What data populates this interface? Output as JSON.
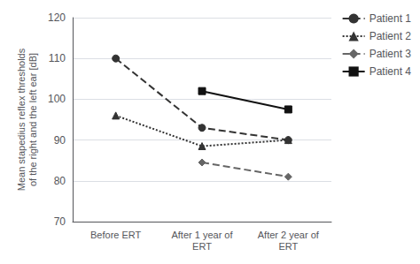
{
  "chart_data": {
    "type": "line",
    "categories": [
      "Before ERT",
      "After 1 year of\nERT",
      "After 2 year of\nERT"
    ],
    "series": [
      {
        "name": "Patient 1",
        "color": "#333333",
        "marker": "circle",
        "line_style": "dashed",
        "values": [
          110,
          93,
          90
        ]
      },
      {
        "name": "Patient 2",
        "color": "#333333",
        "marker": "triangle",
        "line_style": "dotted",
        "values": [
          96,
          88.5,
          90
        ]
      },
      {
        "name": "Patient 3",
        "color": "#666666",
        "marker": "diamond",
        "line_style": "dashed",
        "values": [
          null,
          84.5,
          81
        ]
      },
      {
        "name": "Patient 4",
        "color": "#111111",
        "marker": "square",
        "line_style": "solid",
        "values": [
          null,
          102,
          97.5
        ]
      }
    ],
    "ylabel": "Mean stapedius reflex thresholds\nof the right and the left ear [dB]",
    "ylim": [
      70,
      120
    ],
    "yticks": [
      70,
      80,
      90,
      100,
      110,
      120
    ],
    "grid": true,
    "legend": "upper right"
  }
}
